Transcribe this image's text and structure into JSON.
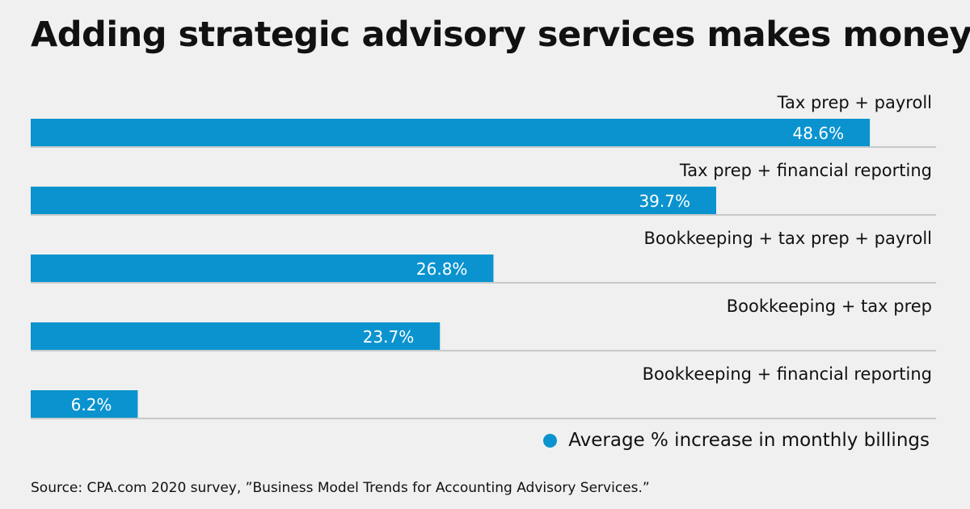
{
  "chart_data": {
    "type": "bar",
    "orientation": "horizontal",
    "title": "Adding strategic advisory services makes money",
    "categories": [
      "Tax prep + payroll",
      "Tax prep + financial reporting",
      "Bookkeeping + tax prep + payroll",
      "Bookkeeping + tax prep",
      "Bookkeeping + financial reporting"
    ],
    "values": [
      48.6,
      39.7,
      26.8,
      23.7,
      6.2
    ],
    "value_labels": [
      "48.6%",
      "39.7%",
      "26.8%",
      "23.7%",
      "6.2%"
    ],
    "xlim": [
      0,
      50
    ],
    "grid": false,
    "legend": {
      "placement": "bottom-right",
      "entries": [
        {
          "label": "Average % increase in monthly billings",
          "color": "#0a93cf"
        }
      ]
    },
    "source": "Source: CPA.com 2020 survey, ”Business Model Trends for Accounting Advisory Services.”"
  },
  "colors": {
    "bar": "#0a93cf",
    "background": "#eff0ef",
    "rule": "#b9bcbf"
  }
}
